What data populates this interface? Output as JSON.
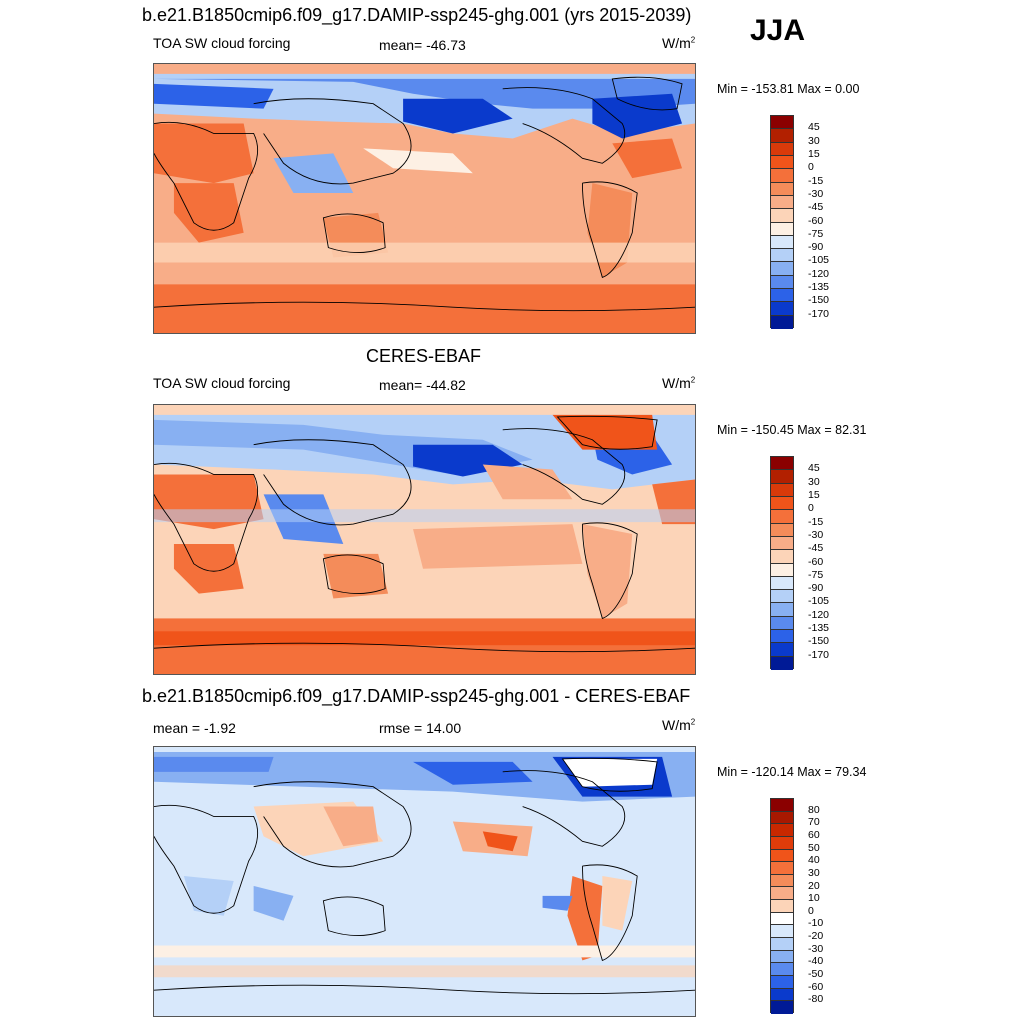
{
  "season": "JJA",
  "panels": [
    {
      "title": "b.e21.B1850cmip6.f09_g17.DAMIP-ssp245-ghg.001 (yrs 2015-2039)",
      "left_label": "TOA SW cloud forcing",
      "center_label": "mean= -46.73",
      "units": "W/m",
      "units_sup": "2",
      "minmax": "Min = -153.81 Max =   0.00",
      "palette": "abs"
    },
    {
      "title": "CERES-EBAF",
      "left_label": "TOA SW cloud forcing",
      "center_label": "mean= -44.82",
      "units": "W/m",
      "units_sup": "2",
      "minmax": "Min = -150.45 Max =  82.31",
      "palette": "abs"
    },
    {
      "title": "b.e21.B1850cmip6.f09_g17.DAMIP-ssp245-ghg.001 - CERES-EBAF",
      "left_label": "mean =  -1.92",
      "center_label": "rmse =  14.00",
      "units": "W/m",
      "units_sup": "2",
      "minmax": "Min = -120.14 Max =  79.34",
      "palette": "diff"
    }
  ],
  "colorbars": {
    "abs": {
      "labels": [
        "45",
        "30",
        "15",
        "0",
        "-15",
        "-30",
        "-45",
        "-60",
        "-75",
        "-90",
        "-105",
        "-120",
        "-135",
        "-150",
        "-170"
      ],
      "colors": [
        "#8b0000",
        "#b22000",
        "#d93a0a",
        "#f0541a",
        "#f4703a",
        "#f48c5a",
        "#f8ad88",
        "#fcd4b8",
        "#fdf0e4",
        "#d8e8fb",
        "#b4d0f7",
        "#88b0f2",
        "#5a8aee",
        "#2c62e8",
        "#0a3acc",
        "#001a96"
      ]
    },
    "diff": {
      "labels": [
        "80",
        "70",
        "60",
        "50",
        "40",
        "30",
        "20",
        "10",
        "0",
        "-10",
        "-20",
        "-30",
        "-40",
        "-50",
        "-60",
        "-80"
      ],
      "colors": [
        "#8b0000",
        "#a81800",
        "#c82800",
        "#e03c0a",
        "#f0541a",
        "#f4703a",
        "#f48c5a",
        "#f8ad88",
        "#fcd4b8",
        "#ffffff",
        "#d8e8fb",
        "#b4d0f7",
        "#88b0f2",
        "#5a8aee",
        "#2c62e8",
        "#0a3acc",
        "#001a96"
      ]
    }
  }
}
